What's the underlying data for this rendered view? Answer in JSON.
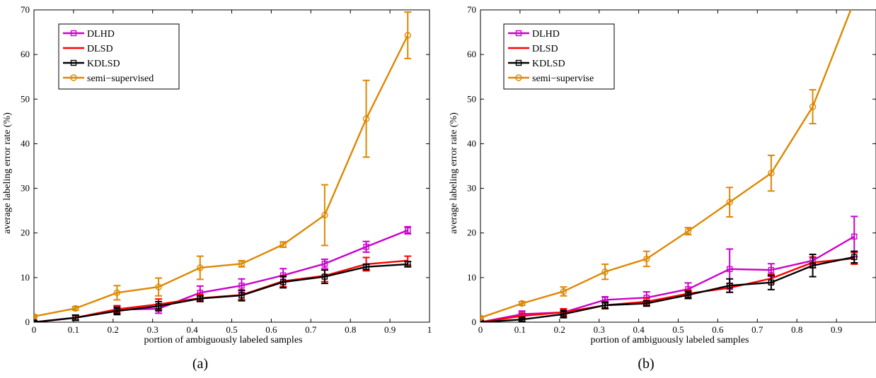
{
  "chart_data": [
    {
      "type": "line",
      "panel_label": "(a)",
      "xlabel": "portion of ambiguously labeled samples",
      "ylabel": "average labeling error rate (%)",
      "xlim": [
        0,
        1
      ],
      "ylim": [
        0,
        70
      ],
      "xticks": [
        "0",
        "0.1",
        "0.2",
        "0.3",
        "0.4",
        "0.5",
        "0.6",
        "0.7",
        "0.8",
        "0.9",
        "1"
      ],
      "yticks": [
        "0",
        "10",
        "20",
        "30",
        "40",
        "50",
        "60",
        "70"
      ],
      "legend_position": "top-left",
      "grid": false,
      "x": [
        0,
        0.105,
        0.21,
        0.315,
        0.42,
        0.525,
        0.63,
        0.735,
        0.84,
        0.945
      ],
      "series": [
        {
          "name": "DLHD",
          "color": "#cc00cc",
          "marker": "square",
          "values": [
            0,
            1,
            2.8,
            3.0,
            6.6,
            8.2,
            10.5,
            13.1,
            16.9,
            20.6
          ],
          "errors": [
            0.3,
            0.5,
            0.8,
            1.0,
            1.5,
            1.5,
            1.5,
            1.0,
            1.2,
            0.8
          ]
        },
        {
          "name": "DLSD",
          "color": "#ff0000",
          "marker": "none",
          "values": [
            0,
            1,
            2.9,
            4.0,
            5.4,
            6.1,
            9.2,
            10.4,
            13.0,
            13.8
          ],
          "errors": [
            0.3,
            0.5,
            0.8,
            1.2,
            0.8,
            1.0,
            1.2,
            1.3,
            1.5,
            1.0
          ]
        },
        {
          "name": "KDLSD",
          "color": "#000000",
          "marker": "square",
          "values": [
            0,
            1,
            2.5,
            3.6,
            5.3,
            6.0,
            9.0,
            10.2,
            12.4,
            13.0
          ],
          "errors": [
            0.3,
            0.6,
            0.8,
            1.0,
            0.6,
            1.2,
            1.3,
            1.5,
            0.6,
            0.6
          ]
        },
        {
          "name": "semi−supervised",
          "color": "#dd8800",
          "marker": "circle",
          "values": [
            1.3,
            3.1,
            6.6,
            7.9,
            12.2,
            13.1,
            17.4,
            24.0,
            45.6,
            64.3
          ],
          "errors": [
            0.3,
            0.4,
            1.6,
            2.0,
            2.6,
            0.7,
            0.6,
            6.8,
            8.6,
            5.2
          ]
        }
      ]
    },
    {
      "type": "line",
      "panel_label": "(b)",
      "xlabel": "portion of ambiguously labeled samples",
      "ylabel": "average labeling error rate (%)",
      "xlim": [
        0,
        1
      ],
      "ylim": [
        0,
        70
      ],
      "xticks": [
        "0",
        "0.1",
        "0.2",
        "0.3",
        "0.4",
        "0.5",
        "0.6",
        "0.7",
        "0.8",
        "0.9"
      ],
      "yticks": [
        "0",
        "10",
        "20",
        "30",
        "40",
        "50",
        "60",
        "70"
      ],
      "legend_position": "top-left",
      "grid": false,
      "x": [
        0,
        0.105,
        0.21,
        0.315,
        0.42,
        0.525,
        0.63,
        0.735,
        0.84,
        0.945
      ],
      "series": [
        {
          "name": "DLHD",
          "color": "#cc00cc",
          "marker": "square",
          "values": [
            0,
            1.8,
            2.2,
            5.0,
            5.5,
            7.4,
            11.9,
            11.7,
            13.8,
            19.2
          ],
          "errors": [
            0.3,
            0.7,
            0.8,
            0.7,
            1.3,
            1.4,
            4.5,
            1.4,
            0.8,
            4.5
          ]
        },
        {
          "name": "DLSD",
          "color": "#ff0000",
          "marker": "none",
          "values": [
            0,
            1.4,
            2.2,
            3.8,
            4.6,
            6.4,
            7.7,
            9.8,
            13.4,
            14.3
          ],
          "errors": [
            0.3,
            0.6,
            0.8,
            0.8,
            0.8,
            0.8,
            1.0,
            1.0,
            1.2,
            1.3
          ]
        },
        {
          "name": "KDLSD",
          "color": "#000000",
          "marker": "square",
          "values": [
            0,
            0.6,
            1.8,
            3.8,
            4.2,
            6.1,
            8.2,
            8.9,
            12.7,
            14.6
          ],
          "errors": [
            0.3,
            0.4,
            0.8,
            0.7,
            0.6,
            0.8,
            1.5,
            1.6,
            2.5,
            1.3
          ]
        },
        {
          "name": "semi−supervise",
          "color": "#dd8800",
          "marker": "circle",
          "values": [
            1.0,
            4.2,
            6.9,
            11.3,
            14.2,
            20.4,
            26.9,
            33.4,
            48.3,
            72.0
          ],
          "errors": [
            0.3,
            0.4,
            1.0,
            1.7,
            1.7,
            0.8,
            3.3,
            4.0,
            3.8,
            0
          ]
        }
      ]
    }
  ]
}
